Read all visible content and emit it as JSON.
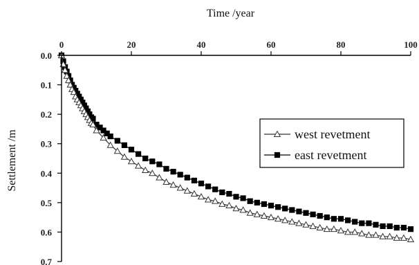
{
  "chart_data": {
    "type": "line",
    "xlabel": "Time /year",
    "ylabel": "Settlement /m",
    "xlim": [
      0,
      100
    ],
    "ylim": [
      0,
      0.7
    ],
    "x_ticks": [
      0,
      20,
      40,
      60,
      80,
      100
    ],
    "y_ticks": [
      0.0,
      0.1,
      0.2,
      0.3,
      0.4,
      0.5,
      0.6,
      0.7
    ],
    "x_tick_labels": [
      "0",
      "20",
      "40",
      "60",
      "80",
      "100"
    ],
    "y_tick_labels": [
      "0.0",
      "0.1",
      "0.2",
      "0.3",
      "0.4",
      "0.5",
      "0.6",
      "0.7"
    ],
    "x_axis_position": "top",
    "y_axis_inverted": true,
    "grid": false,
    "legend_position": "right",
    "series": [
      {
        "name": "west revetment",
        "marker": "open-triangle",
        "color": "#333333",
        "x": [
          0,
          0.5,
          1,
          1.5,
          2,
          2.5,
          3,
          3.5,
          4,
          4.5,
          5,
          5.5,
          6,
          6.5,
          7,
          7.5,
          8,
          8.5,
          9,
          10,
          12,
          14,
          16,
          18,
          20,
          22,
          24,
          26,
          28,
          30,
          32,
          34,
          36,
          38,
          40,
          42,
          44,
          46,
          48,
          50,
          52,
          54,
          56,
          58,
          60,
          62,
          64,
          66,
          68,
          70,
          72,
          74,
          76,
          78,
          80,
          82,
          84,
          86,
          88,
          90,
          92,
          94,
          96,
          98,
          100
        ],
        "values": [
          0.0,
          0.03,
          0.05,
          0.07,
          0.085,
          0.1,
          0.115,
          0.125,
          0.14,
          0.15,
          0.16,
          0.17,
          0.18,
          0.19,
          0.2,
          0.21,
          0.22,
          0.23,
          0.235,
          0.255,
          0.28,
          0.305,
          0.325,
          0.345,
          0.36,
          0.375,
          0.39,
          0.4,
          0.415,
          0.43,
          0.44,
          0.45,
          0.46,
          0.47,
          0.48,
          0.49,
          0.495,
          0.505,
          0.51,
          0.52,
          0.525,
          0.535,
          0.54,
          0.545,
          0.55,
          0.555,
          0.56,
          0.565,
          0.57,
          0.575,
          0.58,
          0.585,
          0.59,
          0.59,
          0.595,
          0.6,
          0.6,
          0.605,
          0.61,
          0.61,
          0.615,
          0.615,
          0.62,
          0.62,
          0.625
        ]
      },
      {
        "name": "east revetment",
        "marker": "filled-square",
        "color": "#000000",
        "x": [
          0,
          0.5,
          1,
          1.5,
          2,
          2.5,
          3,
          3.5,
          4,
          4.5,
          5,
          5.5,
          6,
          6.5,
          7,
          7.5,
          8,
          8.5,
          9,
          10,
          11,
          12,
          13,
          14,
          16,
          18,
          20,
          22,
          24,
          26,
          28,
          30,
          32,
          34,
          36,
          38,
          40,
          42,
          44,
          46,
          48,
          50,
          52,
          54,
          56,
          58,
          60,
          62,
          64,
          66,
          68,
          70,
          72,
          74,
          76,
          78,
          80,
          82,
          84,
          86,
          88,
          90,
          92,
          94,
          96,
          98,
          100
        ],
        "values": [
          0.0,
          0.02,
          0.04,
          0.055,
          0.07,
          0.085,
          0.1,
          0.11,
          0.12,
          0.13,
          0.14,
          0.15,
          0.16,
          0.17,
          0.18,
          0.19,
          0.2,
          0.21,
          0.215,
          0.235,
          0.245,
          0.255,
          0.265,
          0.275,
          0.29,
          0.305,
          0.32,
          0.335,
          0.35,
          0.36,
          0.37,
          0.385,
          0.395,
          0.405,
          0.415,
          0.425,
          0.435,
          0.445,
          0.455,
          0.465,
          0.47,
          0.48,
          0.485,
          0.495,
          0.5,
          0.505,
          0.51,
          0.515,
          0.52,
          0.525,
          0.53,
          0.535,
          0.54,
          0.545,
          0.55,
          0.555,
          0.555,
          0.56,
          0.565,
          0.57,
          0.57,
          0.575,
          0.58,
          0.58,
          0.585,
          0.585,
          0.59
        ]
      }
    ]
  }
}
